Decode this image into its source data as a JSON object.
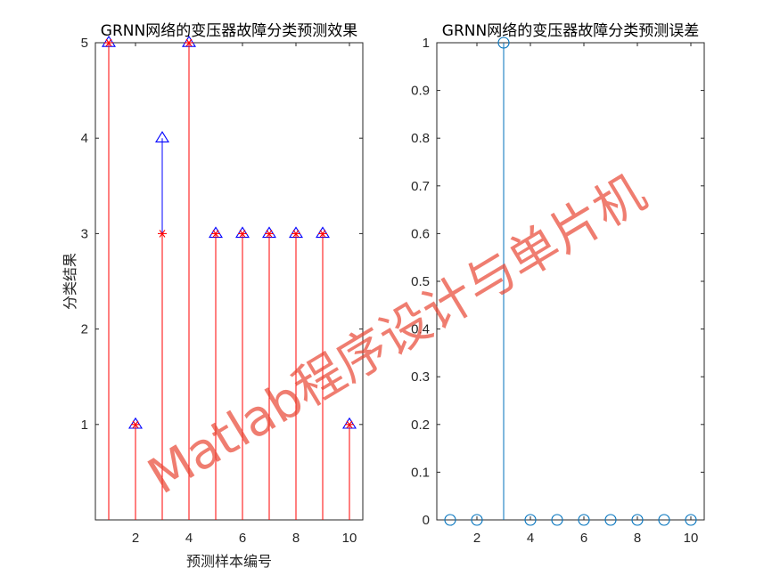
{
  "chart_data": [
    {
      "type": "stem",
      "title": "GRNN网络的变压器故障分类预测效果",
      "xlabel": "预测样本编号",
      "ylabel": "分类结果",
      "xlim": [
        0.5,
        10.5
      ],
      "ylim": [
        0,
        5
      ],
      "xticks": [
        2,
        4,
        6,
        8,
        10
      ],
      "yticks": [
        1,
        2,
        3,
        4,
        5
      ],
      "x": [
        1,
        2,
        3,
        4,
        5,
        6,
        7,
        8,
        9,
        10
      ],
      "series": [
        {
          "values": [
            5,
            1,
            4,
            5,
            3,
            3,
            3,
            3,
            3,
            1
          ],
          "marker": "triangle",
          "color": "#0000ff"
        },
        {
          "values": [
            5,
            1,
            3,
            5,
            3,
            3,
            3,
            3,
            3,
            1
          ],
          "marker": "asterisk",
          "color": "#ff0000"
        }
      ]
    },
    {
      "type": "stem",
      "title": "GRNN网络的变压器故障分类预测误差",
      "xlim": [
        0.5,
        10.5
      ],
      "ylim": [
        0,
        1
      ],
      "xticks": [
        2,
        4,
        6,
        8,
        10
      ],
      "yticks": [
        0,
        0.1,
        0.2,
        0.3,
        0.4,
        0.5,
        0.6,
        0.7,
        0.8,
        0.9,
        1
      ],
      "x": [
        1,
        2,
        3,
        4,
        5,
        6,
        7,
        8,
        9,
        10
      ],
      "series": [
        {
          "values": [
            0,
            0,
            1,
            0,
            0,
            0,
            0,
            0,
            0,
            0
          ],
          "marker": "circle",
          "color": "#0072bd"
        }
      ]
    }
  ],
  "watermark": "Matlab程序设计与单片机"
}
